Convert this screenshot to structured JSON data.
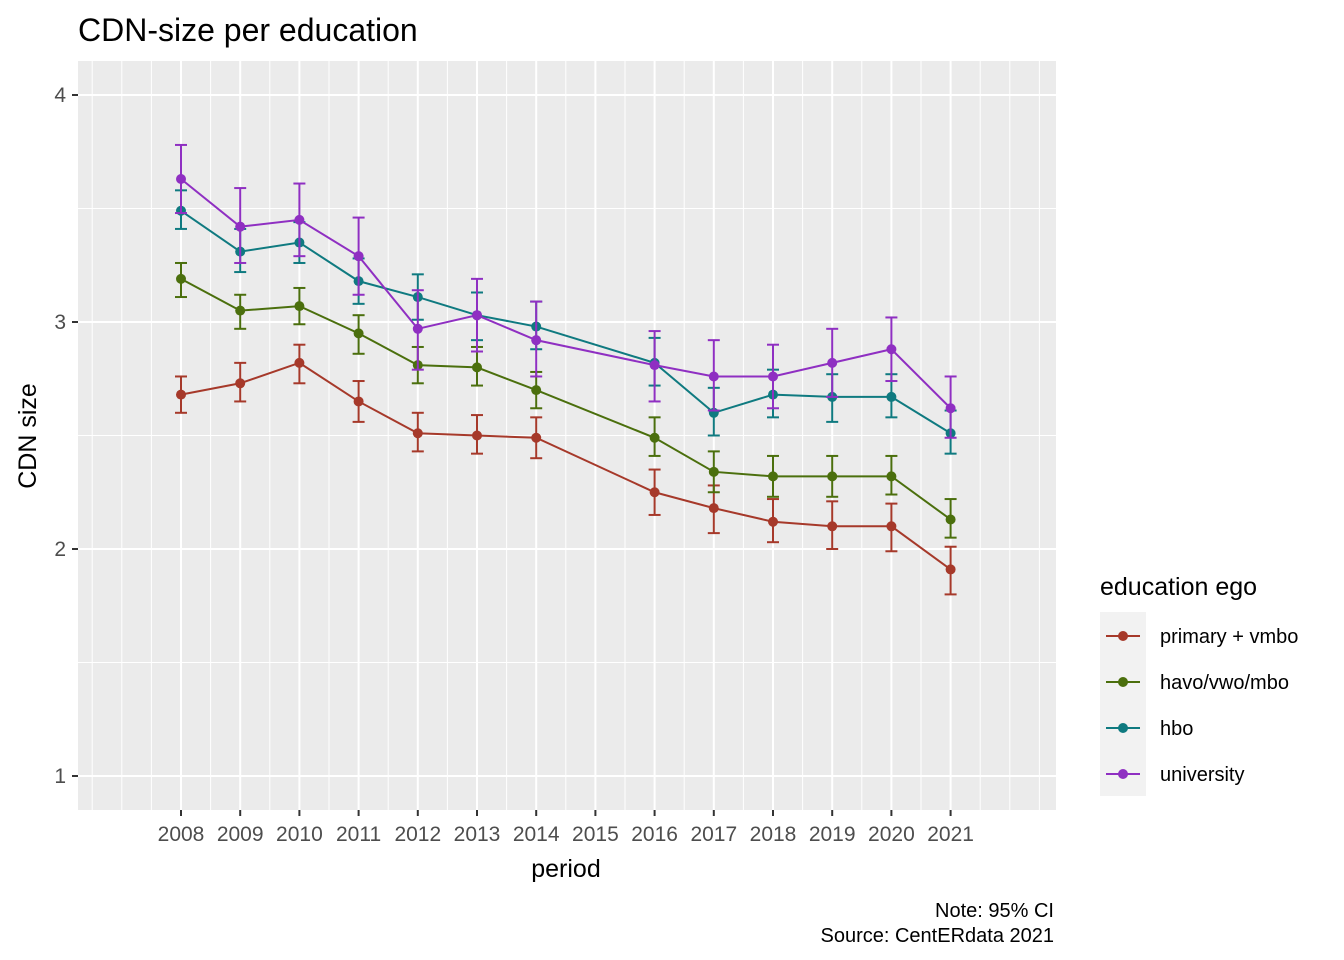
{
  "chart_data": {
    "type": "line",
    "title": "CDN-size per education",
    "xlabel": "period",
    "ylabel": "CDN size",
    "x": [
      "2008",
      "2009",
      "2010",
      "2011",
      "2012",
      "2013",
      "2014",
      "2015",
      "2016",
      "2017",
      "2018",
      "2019",
      "2020",
      "2021"
    ],
    "x_ticks": [
      "2008",
      "2009",
      "2010",
      "2011",
      "2012",
      "2013",
      "2014",
      "2015",
      "2016",
      "2017",
      "2018",
      "2019",
      "2020",
      "2021"
    ],
    "y_ticks": [
      "1",
      "2",
      "3",
      "4"
    ],
    "ylim": [
      0.85,
      4.1
    ],
    "grid": true,
    "error_bars": "95% CI",
    "legend": {
      "title": "education ego",
      "position": "right"
    },
    "series": [
      {
        "name": "primary + vmbo",
        "color": "#a6392a",
        "values": [
          2.68,
          2.73,
          2.82,
          2.65,
          2.51,
          2.5,
          2.49,
          null,
          2.25,
          2.18,
          2.12,
          2.1,
          2.1,
          1.91
        ],
        "lower": [
          2.6,
          2.65,
          2.73,
          2.56,
          2.43,
          2.42,
          2.4,
          null,
          2.15,
          2.07,
          2.03,
          2.0,
          1.99,
          1.8
        ],
        "upper": [
          2.76,
          2.82,
          2.9,
          2.74,
          2.6,
          2.59,
          2.58,
          null,
          2.35,
          2.28,
          2.22,
          2.21,
          2.2,
          2.01
        ]
      },
      {
        "name": "havo/vwo/mbo",
        "color": "#4b6f0d",
        "values": [
          3.19,
          3.05,
          3.07,
          2.95,
          2.81,
          2.8,
          2.7,
          null,
          2.49,
          2.34,
          2.32,
          2.32,
          2.32,
          2.13
        ],
        "lower": [
          3.11,
          2.97,
          2.99,
          2.86,
          2.73,
          2.72,
          2.62,
          null,
          2.41,
          2.25,
          2.23,
          2.23,
          2.24,
          2.05
        ],
        "upper": [
          3.26,
          3.12,
          3.15,
          3.03,
          2.89,
          2.89,
          2.78,
          null,
          2.58,
          2.43,
          2.41,
          2.41,
          2.41,
          2.22
        ]
      },
      {
        "name": "hbo",
        "color": "#0f7a80",
        "values": [
          3.49,
          3.31,
          3.35,
          3.18,
          3.11,
          3.03,
          2.98,
          null,
          2.82,
          2.6,
          2.68,
          2.67,
          2.67,
          2.51
        ],
        "lower": [
          3.41,
          3.22,
          3.26,
          3.08,
          3.01,
          2.92,
          2.88,
          null,
          2.72,
          2.5,
          2.58,
          2.56,
          2.58,
          2.42
        ],
        "upper": [
          3.58,
          3.41,
          3.44,
          3.28,
          3.21,
          3.13,
          3.09,
          null,
          2.93,
          2.71,
          2.79,
          2.77,
          2.77,
          2.61
        ]
      },
      {
        "name": "university",
        "color": "#8f2fc2",
        "values": [
          3.63,
          3.42,
          3.45,
          3.29,
          2.97,
          3.03,
          2.92,
          null,
          2.81,
          2.76,
          2.76,
          2.82,
          2.88,
          2.62
        ],
        "lower": [
          3.48,
          3.26,
          3.29,
          3.12,
          2.79,
          2.87,
          2.76,
          null,
          2.65,
          2.61,
          2.62,
          2.67,
          2.74,
          2.49
        ],
        "upper": [
          3.78,
          3.59,
          3.61,
          3.46,
          3.14,
          3.19,
          3.09,
          null,
          2.96,
          2.92,
          2.9,
          2.97,
          3.02,
          2.76
        ]
      }
    ],
    "caption_lines": [
      "Note: 95% CI",
      "Source: CentERdata 2021"
    ]
  },
  "colors": {
    "panel_background": "#ebebeb",
    "grid_major": "#ffffff",
    "legend_key_background": "#f2f2f2"
  }
}
